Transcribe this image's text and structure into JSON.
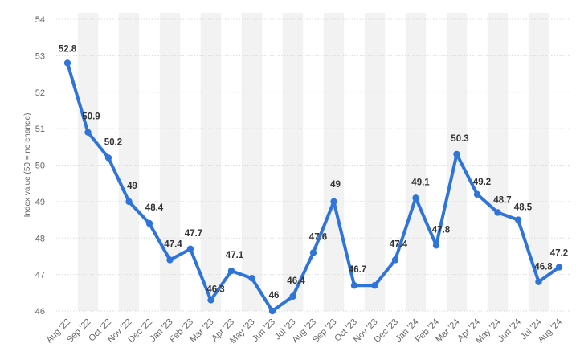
{
  "chart_data": {
    "type": "line",
    "title": "",
    "xlabel": "",
    "ylabel": "Index value (50  = no change)",
    "ylim": [
      46,
      54
    ],
    "yticks": [
      46,
      47,
      48,
      49,
      50,
      51,
      52,
      53,
      54
    ],
    "grid": true,
    "legend": "none",
    "categories": [
      "Aug '22",
      "Sep '22",
      "Oct '22",
      "Nov '22",
      "Dec '22",
      "Jan '23",
      "Feb '23",
      "Mar '23",
      "Apr '23",
      "May '23",
      "Jun '23",
      "Jul '23",
      "Aug '23",
      "Sep '23",
      "Oct '23",
      "Nov '23",
      "Dec '23",
      "Jan '24",
      "Feb '24",
      "Mar '24",
      "Apr '24",
      "May '24",
      "Jun '24",
      "Jul '24",
      "Aug '24"
    ],
    "series": [
      {
        "values": [
          52.8,
          50.9,
          50.2,
          49,
          48.4,
          47.4,
          47.7,
          46.3,
          47.1,
          46.9,
          46,
          46.4,
          47.6,
          49,
          46.7,
          46.7,
          47.4,
          49.1,
          47.8,
          50.3,
          49.2,
          48.7,
          48.5,
          46.8,
          47.2
        ],
        "labels": [
          "52.8",
          "50.9",
          "50.2",
          "49",
          "48.4",
          "47.4",
          "47.7",
          "46.3",
          "47.1",
          "",
          "46",
          "46.4",
          "47.6",
          "49",
          "46.7",
          "",
          "47.4",
          "49.1",
          "47.8",
          "50.3",
          "49.2",
          "48.7",
          "48.5",
          "46.8",
          "47.2"
        ],
        "color": "#2f74d9"
      }
    ],
    "colors": {
      "line": "#2f74d9",
      "band": "#f2f2f2",
      "grid": "#d9d9d9"
    }
  }
}
